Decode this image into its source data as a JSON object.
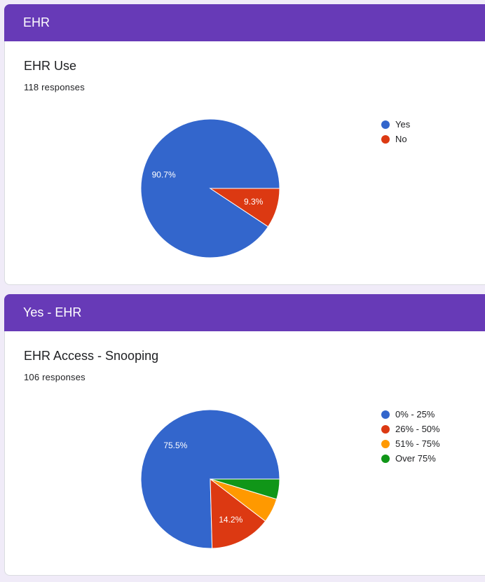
{
  "sections": [
    {
      "header": "EHR",
      "question": "EHR Use",
      "responses": "118 responses",
      "chart_data": {
        "type": "pie",
        "labels": [
          "Yes",
          "No"
        ],
        "values": [
          90.7,
          9.3
        ],
        "data_labels": [
          "90.7%",
          "9.3%"
        ],
        "colors": [
          "#3366cc",
          "#dc3912"
        ],
        "legend_position": "right"
      }
    },
    {
      "header": "Yes - EHR",
      "question": "EHR Access - Snooping",
      "responses": "106 responses",
      "chart_data": {
        "type": "pie",
        "labels": [
          "0% - 25%",
          "26% - 50%",
          "51% - 75%",
          "Over 75%"
        ],
        "values": [
          75.5,
          14.2,
          5.7,
          4.7
        ],
        "data_labels": [
          "75.5%",
          "14.2%",
          "",
          ""
        ],
        "colors": [
          "#3366cc",
          "#dc3912",
          "#ff9900",
          "#109618"
        ],
        "legend_position": "right"
      }
    }
  ]
}
